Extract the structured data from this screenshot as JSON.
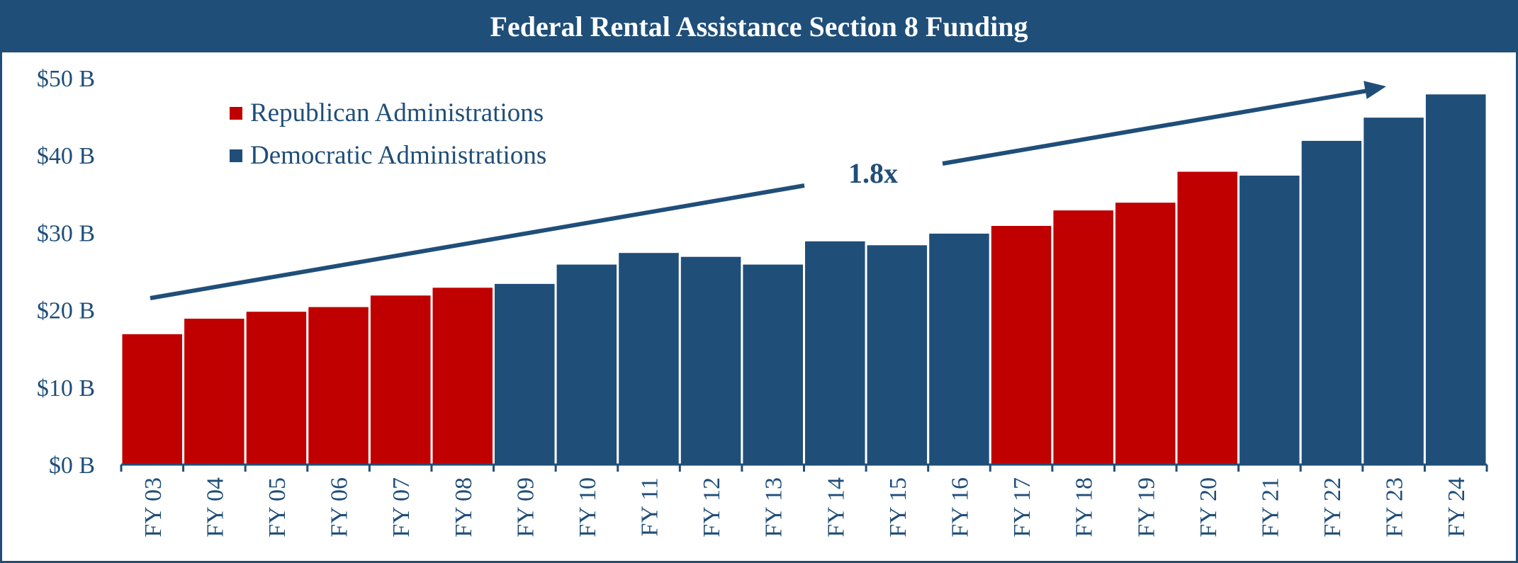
{
  "chart_data": {
    "type": "bar",
    "title": "Federal Rental Assistance Section 8 Funding",
    "xlabel": "",
    "ylabel": "",
    "ylim": [
      0,
      50
    ],
    "y_ticks": [
      "$0 B",
      "$10 B",
      "$20 B",
      "$30 B",
      "$40 B",
      "$50 B"
    ],
    "y_tick_values": [
      0,
      10,
      20,
      30,
      40,
      50
    ],
    "categories": [
      "FY 03",
      "FY 04",
      "FY 05",
      "FY 06",
      "FY 07",
      "FY 08",
      "FY 09",
      "FY 10",
      "FY 11",
      "FY 12",
      "FY 13",
      "FY 14",
      "FY 15",
      "FY 16",
      "FY 17",
      "FY 18",
      "FY 19",
      "FY 20",
      "FY 21",
      "FY 22",
      "FY 23",
      "FY 24"
    ],
    "values": [
      17.0,
      19.0,
      19.9,
      20.5,
      22.0,
      23.0,
      23.5,
      26.0,
      27.5,
      27.0,
      26.0,
      29.0,
      28.5,
      30.0,
      31.0,
      33.0,
      34.0,
      38.0,
      37.5,
      42.0,
      45.0,
      48.0
    ],
    "party": [
      "R",
      "R",
      "R",
      "R",
      "R",
      "R",
      "D",
      "D",
      "D",
      "D",
      "D",
      "D",
      "D",
      "D",
      "R",
      "R",
      "R",
      "R",
      "D",
      "D",
      "D",
      "D"
    ],
    "legend": [
      {
        "key": "R",
        "label": "Republican Administrations",
        "color": "#c00000"
      },
      {
        "key": "D",
        "label": "Democratic Administrations",
        "color": "#1f4e79"
      }
    ],
    "legend_position": "top-left",
    "annotation": "1.8x",
    "grid": false
  }
}
